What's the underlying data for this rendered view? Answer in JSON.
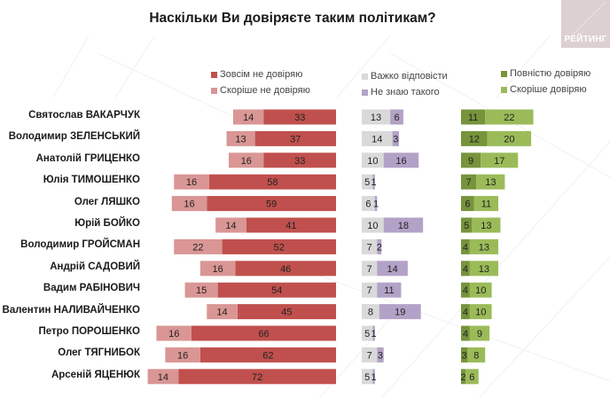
{
  "title": "Наскільки Ви довіряєте таким політикам?",
  "logo": {
    "text": "РЕЙТИНГ",
    "color": "#ddd0d0"
  },
  "chart_data": {
    "type": "bar",
    "orientation": "horizontal",
    "stacked": true,
    "title": "Наскільки Ви довіряєте таким політикам?",
    "xlabel": "",
    "ylabel": "",
    "unit": "%",
    "categories": [
      "Святослав ВАКАРЧУК",
      "Володимир ЗЕЛЕНСЬКИЙ",
      "Анатолій ГРИЦЕНКО",
      "Юлія ТИМОШЕНКО",
      "Олег ЛЯШКО",
      "Юрій БОЙКО",
      "Володимир ГРОЙСМАН",
      "Андрій САДОВИЙ",
      "Вадим РАБІНОВИЧ",
      "Валентин НАЛИВАЙЧЕНКО",
      "Петро ПОРОШЕНКО",
      "Олег ТЯГНИБОК",
      "Арсеній ЯЦЕНЮК"
    ],
    "groups": [
      {
        "name": "distrust",
        "direction": "left",
        "series": [
          {
            "name": "Зовсім не довіряю",
            "color": "#c0504d",
            "values": [
              33,
              37,
              33,
              58,
              59,
              41,
              52,
              46,
              54,
              45,
              66,
              62,
              72
            ]
          },
          {
            "name": "Скоріше не довіряю",
            "color": "#d99694",
            "values": [
              14,
              13,
              16,
              16,
              16,
              14,
              22,
              16,
              15,
              14,
              16,
              16,
              14
            ]
          }
        ]
      },
      {
        "name": "unsure",
        "direction": "right",
        "series": [
          {
            "name": "Важко відповісти",
            "color": "#d9d9d9",
            "values": [
              13,
              14,
              10,
              5,
              6,
              10,
              7,
              7,
              7,
              8,
              5,
              7,
              5
            ]
          },
          {
            "name": "Не знаю такого",
            "color": "#b3a2c7",
            "values": [
              6,
              3,
              16,
              1,
              1,
              18,
              2,
              14,
              11,
              19,
              1,
              3,
              1
            ]
          }
        ]
      },
      {
        "name": "trust",
        "direction": "right",
        "series": [
          {
            "name": "Повністю довіряю",
            "color": "#77933c",
            "values": [
              11,
              12,
              9,
              7,
              6,
              5,
              4,
              4,
              4,
              4,
              4,
              3,
              2
            ]
          },
          {
            "name": "Скоріше довіряю",
            "color": "#9bbb59",
            "values": [
              22,
              20,
              17,
              13,
              11,
              13,
              13,
              13,
              10,
              10,
              9,
              8,
              6
            ]
          }
        ]
      }
    ],
    "legend": [
      {
        "label": "Зовсім не довіряю",
        "color": "#c0504d"
      },
      {
        "label": "Скоріше не довіряю",
        "color": "#d99694"
      },
      {
        "label": "Важко відповісти",
        "color": "#d9d9d9"
      },
      {
        "label": "Не знаю такого",
        "color": "#b3a2c7"
      },
      {
        "label": "Повністю довіряю",
        "color": "#77933c"
      },
      {
        "label": "Скоріше довіряю",
        "color": "#9bbb59"
      }
    ],
    "legend_position": "top",
    "grid": false
  }
}
